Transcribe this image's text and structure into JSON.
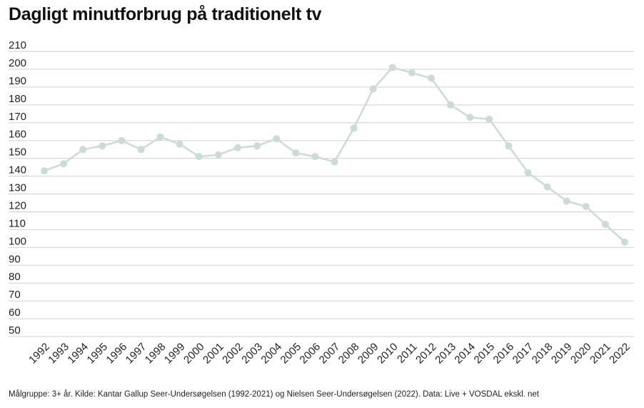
{
  "title": "Dagligt minutforbrug på traditionelt tv",
  "footnote": "Målgruppe: 3+ år. Kilde: Kantar Gallup Seer-Undersøgelsen (1992-2021) og Nielsen Seer-Undersøgelsen (2022). Data: Live + VOSDAL ekskl. net",
  "chart_data": {
    "type": "line",
    "title": "Dagligt minutforbrug på traditionelt tv",
    "xlabel": "",
    "ylabel": "",
    "ylim": [
      50,
      210
    ],
    "yticks": [
      50,
      60,
      70,
      80,
      90,
      100,
      110,
      120,
      130,
      140,
      150,
      160,
      170,
      180,
      190,
      200,
      210
    ],
    "grid": true,
    "legend": "none",
    "categories": [
      "1992",
      "1993",
      "1994",
      "1995",
      "1996",
      "1997",
      "1998",
      "1999",
      "2000",
      "2001",
      "2002",
      "2003",
      "2004",
      "2005",
      "2006",
      "2007",
      "2008",
      "2009",
      "2010",
      "2011",
      "2012",
      "2013",
      "2014",
      "2015",
      "2016",
      "2017",
      "2018",
      "2019",
      "2020",
      "2021",
      "2022"
    ],
    "series": [
      {
        "values": [
          143,
          147,
          155,
          157,
          160,
          155,
          162,
          158,
          151,
          152,
          156,
          157,
          161,
          153,
          151,
          148,
          167,
          189,
          201,
          198,
          195,
          180,
          173,
          172,
          157,
          142,
          134,
          126,
          123,
          113,
          103
        ],
        "color": "#c8ddd5"
      }
    ],
    "colors": {
      "grid": "#d0d0d0",
      "line": "#c8ddd5",
      "text": "#222222"
    }
  }
}
